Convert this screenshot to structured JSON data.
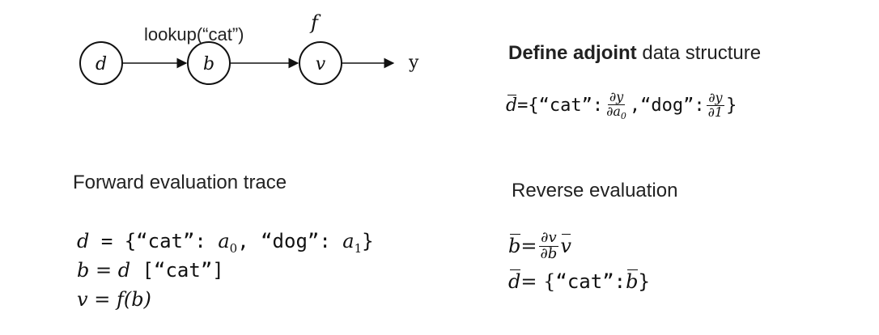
{
  "graph": {
    "label_lookup": "lookup(“cat”)",
    "label_f": "f",
    "node_d": "d",
    "node_b": "b",
    "node_v": "v",
    "output_y": "y"
  },
  "adjoint": {
    "heading_bold": "Define adjoint",
    "heading_rest": " data structure",
    "lhs": "d",
    "eq": " ={",
    "key_cat": "“cat”:",
    "frac1_num": "∂y",
    "frac1_den_a": "∂a",
    "frac1_den_sub": "0",
    "sep": ", ",
    "key_dog": "“dog”:",
    "frac2_num": "∂y",
    "frac2_den": "∂1",
    "close": "}"
  },
  "forward": {
    "heading": "Forward evaluation trace",
    "l1_var": "d",
    "l1_eq": " = {",
    "l1_cat": "“cat”: ",
    "l1_a0": "a",
    "l1_a0_sub": "0",
    "l1_sep": ", ",
    "l1_dog": "“dog”: ",
    "l1_a1": "a",
    "l1_a1_sub": "1",
    "l1_close": "}",
    "l2_var": "b",
    "l2_eq": " = ",
    "l2_d": "d",
    "l2_idx": " [“cat”]",
    "l3_var": "v",
    "l3_eq": " = ",
    "l3_f": "f",
    "l3_arg": "(b)"
  },
  "reverse": {
    "heading": "Reverse evaluation",
    "l1_lhs": "b",
    "l1_eq": " = ",
    "l1_num": "∂v",
    "l1_den": "∂b",
    "l1_v": "v",
    "l2_lhs": "d",
    "l2_eq": " = {",
    "l2_cat": "“cat”: ",
    "l2_b": "b",
    "l2_close": " }"
  }
}
